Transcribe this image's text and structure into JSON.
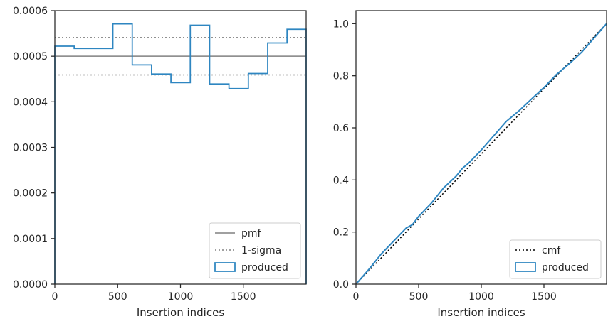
{
  "chart_data": [
    {
      "type": "line",
      "xlabel": "Insertion indices",
      "ylabel": "",
      "xlim": [
        0,
        2000
      ],
      "ylim": [
        0,
        0.0006
      ],
      "x_ticks": [
        0,
        500,
        1000,
        1500
      ],
      "x_tick_labels": [
        "0",
        "500",
        "1000",
        "1500"
      ],
      "y_ticks": [
        0,
        0.0001,
        0.0002,
        0.0003,
        0.0004,
        0.0005,
        0.0006
      ],
      "y_tick_labels": [
        "0.0000",
        "0.0001",
        "0.0002",
        "0.0003",
        "0.0004",
        "0.0005",
        "0.0006"
      ],
      "legend_position": "lower-right",
      "grid": false,
      "series": [
        {
          "name": "pmf",
          "kind": "hline",
          "y": 0.0005,
          "color": "#808080",
          "style": "solid"
        },
        {
          "name": "1-sigma",
          "kind": "hlines",
          "y": [
            0.000459,
            0.000541
          ],
          "color": "#808080",
          "style": "dotted"
        },
        {
          "name": "produced",
          "kind": "step-histogram",
          "color": "#2e86c1",
          "bin_edges": [
            0,
            154,
            462,
            616,
            770,
            924,
            1078,
            1232,
            1386,
            1540,
            1694,
            1848,
            2000
          ],
          "values": [
            0.000522,
            0.000517,
            0.000571,
            0.000481,
            0.000461,
            0.000442,
            0.000568,
            0.000439,
            0.000429,
            0.000462,
            0.000529,
            0.000559
          ]
        }
      ]
    },
    {
      "type": "line",
      "xlabel": "Insertion indices",
      "ylabel": "",
      "xlim": [
        0,
        2000
      ],
      "ylim": [
        0,
        1.05
      ],
      "x_ticks": [
        0,
        500,
        1000,
        1500
      ],
      "x_tick_labels": [
        "0",
        "500",
        "1000",
        "1500"
      ],
      "y_ticks": [
        0,
        0.2,
        0.4,
        0.6,
        0.8,
        1.0
      ],
      "y_tick_labels": [
        "0.0",
        "0.2",
        "0.4",
        "0.6",
        "0.8",
        "1.0"
      ],
      "legend_position": "lower-right",
      "grid": false,
      "series": [
        {
          "name": "cmf",
          "kind": "line",
          "x": [
            0,
            2000
          ],
          "y": [
            0,
            1.0
          ],
          "color": "#000000",
          "style": "dotted"
        },
        {
          "name": "produced",
          "kind": "line",
          "color": "#2e86c1",
          "x": [
            0,
            100,
            200,
            300,
            400,
            450,
            500,
            600,
            700,
            800,
            850,
            900,
            1000,
            1100,
            1200,
            1300,
            1400,
            1500,
            1600,
            1700,
            1800,
            1900,
            2000
          ],
          "y": [
            0,
            0.055,
            0.115,
            0.165,
            0.215,
            0.228,
            0.26,
            0.31,
            0.37,
            0.415,
            0.445,
            0.465,
            0.515,
            0.57,
            0.625,
            0.665,
            0.71,
            0.755,
            0.805,
            0.845,
            0.89,
            0.945,
            1.0
          ]
        }
      ]
    }
  ]
}
